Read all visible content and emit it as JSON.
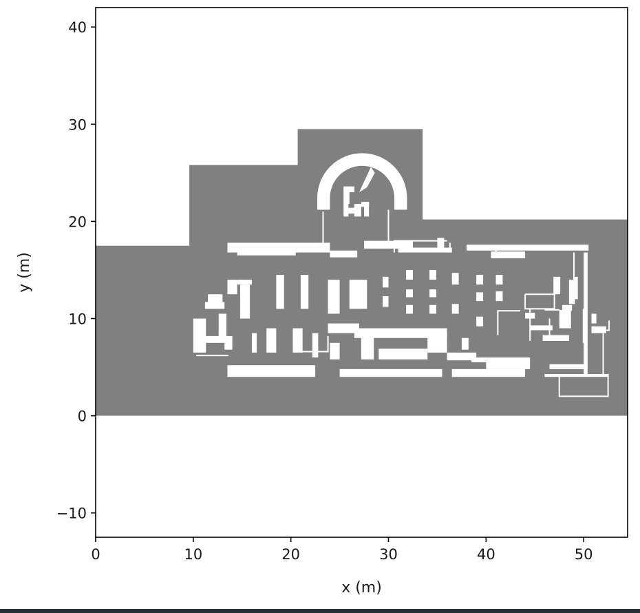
{
  "chart_data": {
    "type": "heatmap",
    "xlabel": "x (m)",
    "ylabel": "y (m)",
    "xlim": [
      0,
      54.5
    ],
    "ylim": [
      -12.5,
      42
    ],
    "x_ticks": [
      {
        "value": 0,
        "label": "0"
      },
      {
        "value": 10,
        "label": "10"
      },
      {
        "value": 20,
        "label": "20"
      },
      {
        "value": 30,
        "label": "30"
      },
      {
        "value": 40,
        "label": "40"
      },
      {
        "value": 50,
        "label": "50"
      }
    ],
    "y_ticks": [
      {
        "value": -10,
        "label": "−10"
      },
      {
        "value": 0,
        "label": "0"
      },
      {
        "value": 10,
        "label": "10"
      },
      {
        "value": 20,
        "label": "20"
      },
      {
        "value": 30,
        "label": "30"
      },
      {
        "value": 40,
        "label": "40"
      }
    ],
    "colors": {
      "occupied": "#808080",
      "free": "#ffffff",
      "axes": "#000000"
    },
    "occupied_polygon": [
      [
        0,
        0
      ],
      [
        54.5,
        0
      ],
      [
        54.5,
        20.2
      ],
      [
        33.5,
        20.2
      ],
      [
        33.5,
        29.5
      ],
      [
        20.7,
        29.5
      ],
      [
        20.7,
        25.8
      ],
      [
        9.6,
        25.8
      ],
      [
        9.6,
        17.5
      ],
      [
        0,
        17.5
      ]
    ],
    "free_regions": [
      [
        13.5,
        16.8,
        24.0,
        17.8
      ],
      [
        24.0,
        16.3,
        26.8,
        17.0
      ],
      [
        14.5,
        16.5,
        20.5,
        17.0
      ],
      [
        27.5,
        17.2,
        32.5,
        18.0
      ],
      [
        31.0,
        16.8,
        36.5,
        17.3
      ],
      [
        38.0,
        17.0,
        50.5,
        17.6
      ],
      [
        40.5,
        16.2,
        44.0,
        16.9
      ],
      [
        13.5,
        12.5,
        14.5,
        14.0
      ],
      [
        14.5,
        13.5,
        16.0,
        14.0
      ],
      [
        14.8,
        10.0,
        15.8,
        13.5
      ],
      [
        18.5,
        11.0,
        19.3,
        14.5
      ],
      [
        21.0,
        11.0,
        21.8,
        14.5
      ],
      [
        23.8,
        10.5,
        25.0,
        14.0
      ],
      [
        26.0,
        11.0,
        27.8,
        14.0
      ],
      [
        29.4,
        13.2,
        30.0,
        14.3
      ],
      [
        29.4,
        11.2,
        30.0,
        12.3
      ],
      [
        31.8,
        14.0,
        32.5,
        15.0
      ],
      [
        31.8,
        12.2,
        32.5,
        13.0
      ],
      [
        31.8,
        10.5,
        32.5,
        11.4
      ],
      [
        34.2,
        14.0,
        34.9,
        15.0
      ],
      [
        34.2,
        12.2,
        34.9,
        13.0
      ],
      [
        34.2,
        10.5,
        34.9,
        11.4
      ],
      [
        36.5,
        13.5,
        37.2,
        14.7
      ],
      [
        36.5,
        10.5,
        37.2,
        11.5
      ],
      [
        39.0,
        13.5,
        39.7,
        14.5
      ],
      [
        39.0,
        11.8,
        39.7,
        12.7
      ],
      [
        39.0,
        9.2,
        39.7,
        10.2
      ],
      [
        41.0,
        13.5,
        41.7,
        14.5
      ],
      [
        41.0,
        11.8,
        41.7,
        12.8
      ],
      [
        11.2,
        11.0,
        13.2,
        11.7
      ],
      [
        11.5,
        11.6,
        13.0,
        12.5
      ],
      [
        10.0,
        6.5,
        11.3,
        10.0
      ],
      [
        10.8,
        7.5,
        14.0,
        8.2
      ],
      [
        12.6,
        7.8,
        13.4,
        10.5
      ],
      [
        13.2,
        6.8,
        14.0,
        8.0
      ],
      [
        16.0,
        6.5,
        16.5,
        8.5
      ],
      [
        17.5,
        6.5,
        18.5,
        9.0
      ],
      [
        20.2,
        6.5,
        21.2,
        9.0
      ],
      [
        22.2,
        6.0,
        22.8,
        8.5
      ],
      [
        23.8,
        8.5,
        27.0,
        9.5
      ],
      [
        26.5,
        8.0,
        36.0,
        9.0
      ],
      [
        27.2,
        5.8,
        28.5,
        8.5
      ],
      [
        29.0,
        5.8,
        34.0,
        6.9
      ],
      [
        34.0,
        6.5,
        36.0,
        8.6
      ],
      [
        36.0,
        5.7,
        39.0,
        6.5
      ],
      [
        24.0,
        5.8,
        25.0,
        7.5
      ],
      [
        37.5,
        6.8,
        38.2,
        8.0
      ],
      [
        13.5,
        4.0,
        22.5,
        5.2
      ],
      [
        25.0,
        4.0,
        35.5,
        4.8
      ],
      [
        36.5,
        4.0,
        44.0,
        4.8
      ],
      [
        40.0,
        4.8,
        44.5,
        5.8
      ],
      [
        38.5,
        5.5,
        44.5,
        6.0
      ],
      [
        46.5,
        4.8,
        50.0,
        5.3
      ],
      [
        50.0,
        4.3,
        50.4,
        16.8
      ],
      [
        46.0,
        4.0,
        52.5,
        4.3
      ],
      [
        44.0,
        10.0,
        45.0,
        10.6
      ],
      [
        44.5,
        8.8,
        46.8,
        9.3
      ],
      [
        45.8,
        7.7,
        48.5,
        8.3
      ],
      [
        47.5,
        9.0,
        48.7,
        10.9
      ],
      [
        46.9,
        12.5,
        47.6,
        14.3
      ],
      [
        48.5,
        11.5,
        49.1,
        14.0
      ],
      [
        49.0,
        12.0,
        49.4,
        14.3
      ],
      [
        47.8,
        10.8,
        48.8,
        11.4
      ],
      [
        49.9,
        7.5,
        50.3,
        11.0
      ],
      [
        50.8,
        8.5,
        52.3,
        9.2
      ],
      [
        50.8,
        9.5,
        51.3,
        10.5
      ],
      [
        35.0,
        18.3,
        35.7,
        17.3
      ]
    ],
    "free_lines": [
      [
        [
          20.3,
          6.6
        ],
        [
          23.8,
          6.6
        ],
        [
          23.8,
          8.2
        ]
      ],
      [
        [
          23.3,
          17.0
        ],
        [
          23.3,
          21.0
        ]
      ],
      [
        [
          30.0,
          17.3
        ],
        [
          30.0,
          21.2
        ]
      ],
      [
        [
          30.6,
          16.8
        ],
        [
          30.6,
          18.0
        ],
        [
          36.0,
          18.0
        ]
      ],
      [
        [
          36.3,
          16.8
        ],
        [
          36.3,
          17.8
        ]
      ],
      [
        [
          44.0,
          12.5
        ],
        [
          44.0,
          11.0
        ],
        [
          47.0,
          11.0
        ],
        [
          47.0,
          12.5
        ],
        [
          44.0,
          12.5
        ]
      ],
      [
        [
          41.2,
          8.3
        ],
        [
          41.2,
          10.8
        ],
        [
          43.5,
          10.8
        ]
      ],
      [
        [
          44.5,
          7.7
        ],
        [
          44.5,
          11.0
        ]
      ],
      [
        [
          46.5,
          7.7
        ],
        [
          46.5,
          10.0
        ]
      ],
      [
        [
          47.5,
          4.3
        ],
        [
          47.5,
          2.0
        ],
        [
          52.5,
          2.0
        ],
        [
          52.5,
          4.3
        ]
      ],
      [
        [
          52.0,
          4.3
        ],
        [
          52.0,
          8.8
        ],
        [
          52.6,
          8.8
        ],
        [
          52.6,
          9.8
        ]
      ],
      [
        [
          10.3,
          6.2
        ],
        [
          13.6,
          6.2
        ]
      ],
      [
        [
          46.0,
          10.9
        ],
        [
          47.5,
          10.9
        ]
      ],
      [
        [
          41.0,
          17.0
        ],
        [
          41.0,
          16.2
        ]
      ],
      [
        [
          49.0,
          16.8
        ],
        [
          49.0,
          13.2
        ]
      ]
    ],
    "free_arches": [
      {
        "cx": 27.3,
        "cy": 22.4,
        "r_outer": 4.6,
        "r_inner": 3.3
      }
    ],
    "arch_interior_regions": [
      [
        25.4,
        21.8,
        26.0,
        23.2
      ],
      [
        25.4,
        23.0,
        26.5,
        23.6
      ],
      [
        25.4,
        20.5,
        25.9,
        22.0
      ],
      [
        26.5,
        20.5,
        27.2,
        21.8
      ],
      [
        27.2,
        21.5,
        28.0,
        22.0
      ],
      [
        27.5,
        20.5,
        28.0,
        22.0
      ],
      [
        25.8,
        20.8,
        26.8,
        21.4
      ]
    ],
    "arch_notch_polygon": [
      [
        27.0,
        23.0
      ],
      [
        28.2,
        25.6
      ],
      [
        28.6,
        25.0
      ],
      [
        27.8,
        23.5
      ]
    ]
  }
}
